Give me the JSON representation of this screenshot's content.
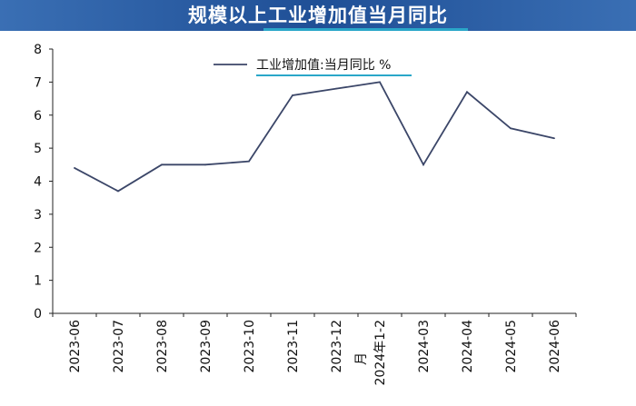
{
  "header": {
    "title": "规模以上工业增加值当月同比"
  },
  "chart_data": {
    "type": "line",
    "title": "规模以上工业增加值当月同比",
    "categories": [
      "2023-06",
      "2023-07",
      "2023-08",
      "2023-09",
      "2023-10",
      "2023-11",
      "2023-12",
      "2024年1-2月",
      "2024-03",
      "2024-04",
      "2024-05",
      "2024-06"
    ],
    "series": [
      {
        "name": "工业增加值:当月同比 %",
        "values": [
          4.4,
          3.7,
          4.5,
          4.5,
          4.6,
          6.6,
          6.8,
          7.0,
          4.5,
          6.7,
          5.6,
          5.3
        ],
        "color": "#3b4668"
      }
    ],
    "yticks": [
      0,
      1,
      2,
      3,
      4,
      5,
      6,
      7,
      8
    ],
    "ylim": [
      0,
      8
    ],
    "grid": false,
    "legend_position": "top-center",
    "colors": {
      "title_bg": "#2c5ea8",
      "accent_underline": "#2aa7c9",
      "line": "#3b4668"
    }
  }
}
